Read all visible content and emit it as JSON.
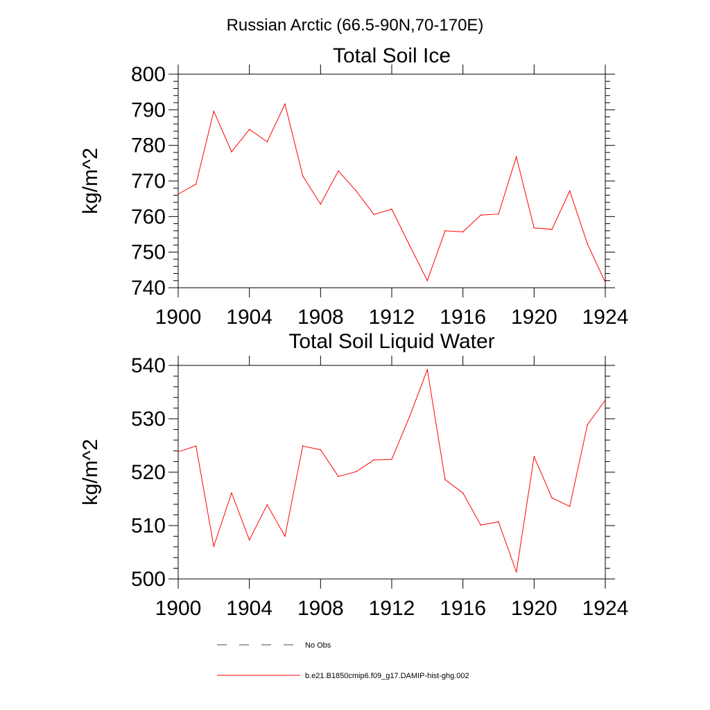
{
  "figure": {
    "suptitle": "Russian Arctic (66.5-90N,70-170E)"
  },
  "chart_data": [
    {
      "type": "line",
      "title": "Total Soil Ice",
      "xlabel": "",
      "ylabel": "kg/m^2",
      "xlim": [
        1900,
        1924
      ],
      "ylim": [
        740,
        800
      ],
      "xticks": [
        1900,
        1904,
        1908,
        1912,
        1916,
        1920,
        1924
      ],
      "yticks": [
        740,
        750,
        760,
        770,
        780,
        790,
        800
      ],
      "grid": false,
      "series": [
        {
          "name": "b.e21.B1850cmip6.f09_g17.DAMIP-hist-ghg.002",
          "color": "#ff0000",
          "x": [
            1900,
            1901,
            1902,
            1903,
            1904,
            1905,
            1906,
            1907,
            1908,
            1909,
            1910,
            1911,
            1912,
            1913,
            1914,
            1915,
            1916,
            1917,
            1918,
            1919,
            1920,
            1921,
            1922,
            1923,
            1924
          ],
          "y": [
            766.3,
            769.1,
            789.6,
            778.2,
            784.5,
            781.0,
            791.6,
            771.4,
            763.5,
            772.8,
            767.2,
            760.6,
            762.1,
            751.9,
            742.0,
            756.0,
            755.7,
            760.4,
            760.7,
            776.8,
            756.8,
            756.4,
            767.2,
            752.3,
            741.5
          ]
        }
      ]
    },
    {
      "type": "line",
      "title": "Total Soil Liquid Water",
      "xlabel": "",
      "ylabel": "kg/m^2",
      "xlim": [
        1900,
        1924
      ],
      "ylim": [
        500,
        540
      ],
      "xticks": [
        1900,
        1904,
        1908,
        1912,
        1916,
        1920,
        1924
      ],
      "yticks": [
        500,
        510,
        520,
        530,
        540
      ],
      "grid": false,
      "series": [
        {
          "name": "b.e21.B1850cmip6.f09_g17.DAMIP-hist-ghg.002",
          "color": "#ff0000",
          "x": [
            1900,
            1901,
            1902,
            1903,
            1904,
            1905,
            1906,
            1907,
            1908,
            1909,
            1910,
            1911,
            1912,
            1913,
            1914,
            1915,
            1916,
            1917,
            1918,
            1919,
            1920,
            1921,
            1922,
            1923,
            1924
          ],
          "y": [
            523.8,
            524.9,
            506.1,
            516.1,
            507.3,
            513.9,
            508.0,
            524.9,
            524.2,
            519.2,
            520.1,
            522.3,
            522.4,
            530.4,
            539.2,
            518.6,
            516.1,
            510.1,
            510.7,
            501.3,
            522.9,
            515.2,
            513.6,
            528.9,
            533.5
          ]
        }
      ]
    }
  ],
  "legend": {
    "placement": "bottom-center",
    "entries": [
      {
        "label": "No Obs",
        "style": "dashed",
        "color": "#44446a"
      },
      {
        "label": "b.e21.B1850cmip6.f09_g17.DAMIP-hist-ghg.002",
        "style": "solid",
        "color": "#ff0000"
      }
    ]
  }
}
